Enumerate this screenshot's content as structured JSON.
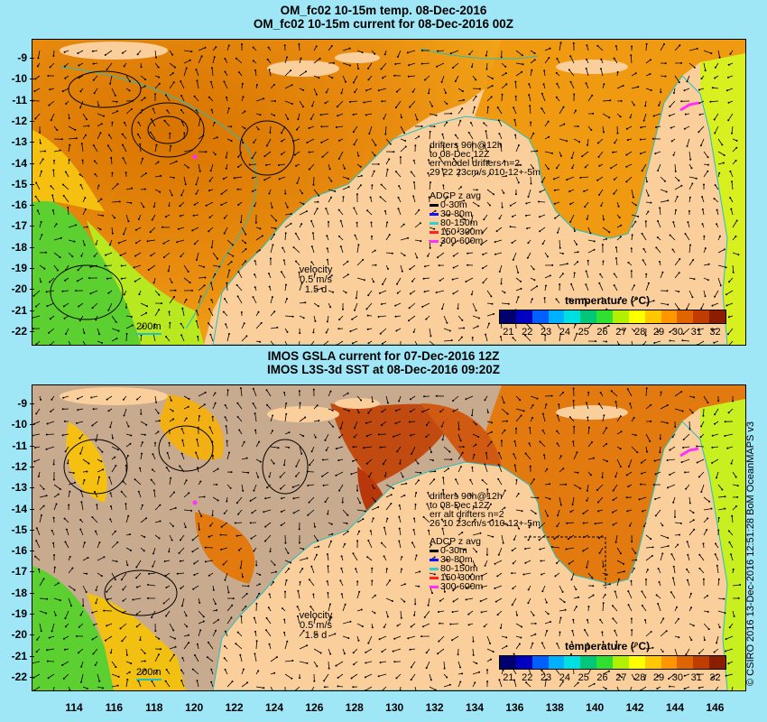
{
  "top": {
    "title_line1": "OM_fc02 10-15m temp. 08-Dec-2016",
    "title_line2": "OM_fc02 10-15m current for 08-Dec-2016 00Z",
    "drifters": [
      "drifters 96h@12h",
      "to 08-Dec 12Z",
      "err model drifters n=2",
      "29 22 23cm/s 010-12+-5m"
    ],
    "adcp_title": "ADCP z avg",
    "adcp": [
      {
        "label": "0-30m",
        "color": "#000000"
      },
      {
        "label": "30-80m",
        "color": "#1010ff"
      },
      {
        "label": "80-150m",
        "color": "#30d0d0"
      },
      {
        "label": "150-300m",
        "color": "#ff2020"
      },
      {
        "label": "300-600m",
        "color": "#ff30ff"
      }
    ],
    "velocity": [
      "velocity",
      "0.5 m/s",
      "1.5 d"
    ],
    "scale_label": "200m",
    "cbar_title": "temperature (°C)",
    "cbar_ticks": [
      "21",
      "22",
      "23",
      "24",
      "25",
      "26",
      "27",
      "28",
      "29",
      "30",
      "31",
      "32"
    ]
  },
  "bottom": {
    "title_line1": "IMOS GSLA current for 07-Dec-2016 12Z",
    "title_line2": "IMOS L3S-3d SST at 08-Dec-2016 09:20Z",
    "drifters": [
      "drifters 96h@12h",
      "to 08-Dec 12Z",
      "err alt drifters n=2",
      "26 10 23cm/s 010-12+-5m"
    ],
    "adcp_title": "ADCP z avg",
    "adcp": [
      {
        "label": "0-30m",
        "color": "#000000"
      },
      {
        "label": "30-80m",
        "color": "#1010ff"
      },
      {
        "label": "80-150m",
        "color": "#30d0d0"
      },
      {
        "label": "150-300m",
        "color": "#ff2020"
      },
      {
        "label": "300-600m",
        "color": "#ff30ff"
      }
    ],
    "velocity": [
      "velocity",
      "0.5 m/s",
      "1.5 d"
    ],
    "scale_label": "200m",
    "cbar_title": "temperature (°C)",
    "cbar_ticks": [
      "21",
      "22",
      "23",
      "24",
      "25",
      "26",
      "27",
      "28",
      "29",
      "30",
      "31",
      "32"
    ]
  },
  "y_ticks": [
    "-9",
    "-10",
    "-11",
    "-12",
    "-13",
    "-14",
    "-15",
    "-16",
    "-17",
    "-18",
    "-19",
    "-20",
    "-21",
    "-22"
  ],
  "x_ticks": [
    "114",
    "116",
    "118",
    "120",
    "122",
    "124",
    "126",
    "128",
    "130",
    "132",
    "134",
    "136",
    "138",
    "140",
    "142",
    "144",
    "146"
  ],
  "credit": "© CSIRO 2016  13-Dec-2016 12:51:28 BoM OceanMAPS v3",
  "colors": {
    "background": "#9fe7f7",
    "land": "#fbcf9c",
    "nodata": "#c8aa8e",
    "colormap": [
      "#00006e",
      "#0000c0",
      "#0060ff",
      "#00b0ff",
      "#00e0e0",
      "#00c878",
      "#30e030",
      "#b0f000",
      "#ffff00",
      "#ffc800",
      "#ff9600",
      "#e06400",
      "#c03c00",
      "#8c1e00"
    ]
  }
}
